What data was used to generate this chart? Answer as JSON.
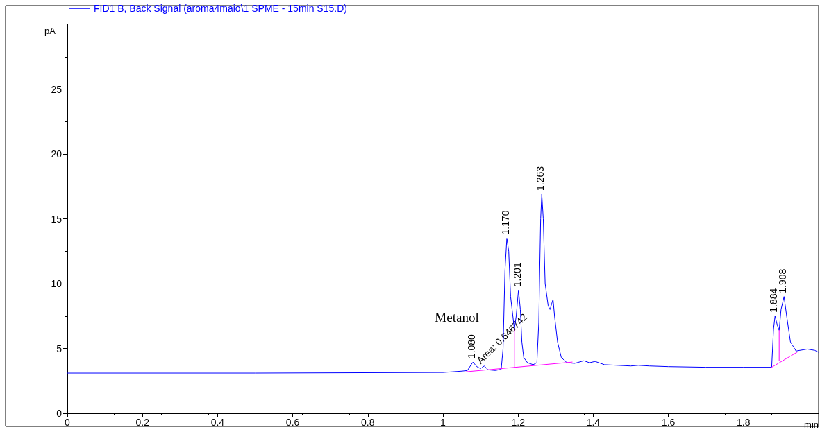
{
  "chart_data": {
    "type": "line",
    "xlabel": "min",
    "ylabel": "pA",
    "legend": "top left",
    "grid": false,
    "marker": "none",
    "line_style": "solid",
    "xlim": [
      0,
      2.0
    ],
    "xticks": [
      0,
      0.2,
      0.4,
      0.6,
      0.8,
      1,
      1.2,
      1.4,
      1.6,
      1.8
    ],
    "ylim": [
      0,
      30
    ],
    "yticks": [
      0,
      5,
      10,
      15,
      20,
      25
    ],
    "series": [
      {
        "name": "FID1 B, Back Signal (aroma4maio\\1 SPME - 15min S15.D)",
        "color": "#0000ff",
        "x": [
          0,
          0.5,
          1.0,
          1.05,
          1.065,
          1.075,
          1.08,
          1.09,
          1.1,
          1.11,
          1.12,
          1.14,
          1.155,
          1.16,
          1.165,
          1.17,
          1.175,
          1.18,
          1.19,
          1.195,
          1.201,
          1.206,
          1.21,
          1.215,
          1.225,
          1.24,
          1.25,
          1.255,
          1.26,
          1.263,
          1.267,
          1.272,
          1.28,
          1.285,
          1.29,
          1.293,
          1.297,
          1.305,
          1.315,
          1.33,
          1.35,
          1.375,
          1.39,
          1.405,
          1.43,
          1.5,
          1.52,
          1.55,
          1.6,
          1.7,
          1.8,
          1.875,
          1.88,
          1.884,
          1.89,
          1.895,
          1.9,
          1.908,
          1.915,
          1.925,
          1.94,
          1.95,
          1.97,
          1.99,
          2.0
        ],
        "values": [
          3.1,
          3.1,
          3.15,
          3.25,
          3.3,
          3.75,
          3.95,
          3.6,
          3.45,
          3.65,
          3.35,
          3.3,
          3.4,
          5,
          11,
          13.5,
          12.5,
          9,
          6.5,
          7.5,
          9.5,
          8,
          5.5,
          4.3,
          3.9,
          3.75,
          3.9,
          7,
          15,
          16.9,
          15,
          10,
          8.3,
          8,
          8.5,
          8.8,
          7.5,
          5.5,
          4.3,
          3.9,
          3.85,
          4.05,
          3.9,
          4.0,
          3.75,
          3.65,
          3.7,
          3.65,
          3.6,
          3.55,
          3.55,
          3.55,
          6.5,
          7.5,
          6.8,
          6.4,
          8,
          9.0,
          7.5,
          5.5,
          4.8,
          4.85,
          4.95,
          4.85,
          4.7
        ]
      },
      {
        "color": "#ff00ff",
        "x": [
          1.061,
          1.344
        ],
        "values": [
          3.2,
          3.95
        ]
      },
      {
        "color": "#ff00ff",
        "x": [
          1.19,
          1.19
        ],
        "values": [
          3.55,
          6.5
        ]
      },
      {
        "color": "#ff00ff",
        "x": [
          1.875,
          1.945
        ],
        "values": [
          3.55,
          4.75
        ]
      },
      {
        "color": "#ff00ff",
        "x": [
          1.895,
          1.895
        ],
        "values": [
          4.05,
          6.4
        ]
      }
    ],
    "annotations": [
      "Metanol",
      {
        "text": "1.080",
        "x": 1.08,
        "y": 3.95
      },
      "Area: 0.646742",
      {
        "text": "1.170",
        "x": 1.17,
        "y": 13.5
      },
      {
        "text": "1.201",
        "x": 1.201,
        "y": 9.5
      },
      {
        "text": "1.263",
        "x": 1.263,
        "y": 16.9
      },
      {
        "text": "1.884",
        "x": 1.884,
        "y": 7.5
      },
      {
        "text": "1.908",
        "x": 1.908,
        "y": 9.0
      }
    ]
  }
}
